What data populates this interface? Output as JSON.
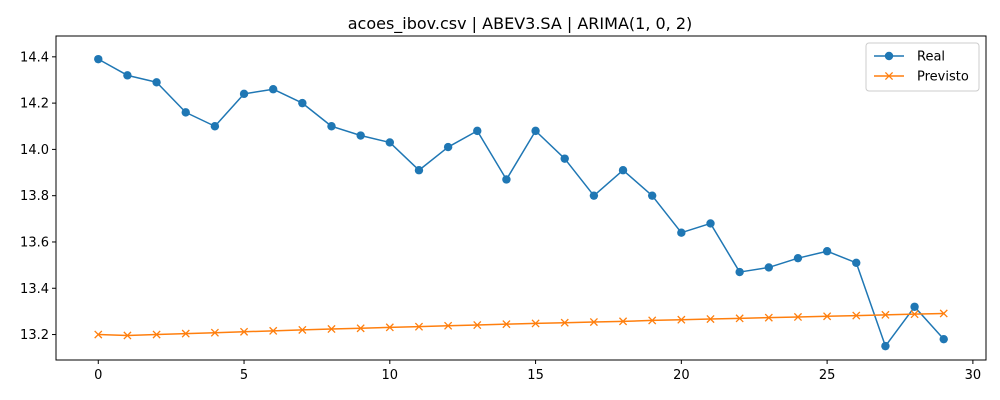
{
  "chart_data": {
    "type": "line",
    "title": "acoes_ibov.csv | ABEV3.SA | ARIMA(1, 0, 2)",
    "xlabel": "",
    "ylabel": "",
    "xlim": [
      -1.45,
      30.45
    ],
    "ylim": [
      13.09,
      14.49
    ],
    "x_ticks": [
      0,
      5,
      10,
      15,
      20,
      25,
      30
    ],
    "x_tick_labels": [
      "0",
      "5",
      "10",
      "15",
      "20",
      "25",
      "30"
    ],
    "y_ticks": [
      13.2,
      13.4,
      13.6,
      13.8,
      14.0,
      14.2,
      14.4
    ],
    "y_tick_labels": [
      "13.2",
      "13.4",
      "13.6",
      "13.8",
      "14.0",
      "14.2",
      "14.4"
    ],
    "grid": false,
    "legend_position": "top-right",
    "x": [
      0,
      1,
      2,
      3,
      4,
      5,
      6,
      7,
      8,
      9,
      10,
      11,
      12,
      13,
      14,
      15,
      16,
      17,
      18,
      19,
      20,
      21,
      22,
      23,
      24,
      25,
      26,
      27,
      28,
      29
    ],
    "series": [
      {
        "name": "Real",
        "color": "#1f77b4",
        "marker": "circle",
        "values": [
          14.39,
          14.32,
          14.29,
          14.16,
          14.1,
          14.24,
          14.26,
          14.2,
          14.1,
          14.06,
          14.03,
          13.91,
          14.01,
          14.08,
          13.87,
          14.08,
          13.96,
          13.8,
          13.91,
          13.8,
          13.64,
          13.68,
          13.47,
          13.49,
          13.53,
          13.56,
          13.51,
          13.15,
          13.32,
          13.18
        ]
      },
      {
        "name": "Previsto",
        "color": "#ff7f0e",
        "marker": "x",
        "values": [
          13.2,
          13.196,
          13.2,
          13.204,
          13.208,
          13.212,
          13.216,
          13.22,
          13.224,
          13.227,
          13.231,
          13.234,
          13.238,
          13.241,
          13.245,
          13.248,
          13.251,
          13.254,
          13.257,
          13.261,
          13.264,
          13.267,
          13.27,
          13.273,
          13.276,
          13.279,
          13.282,
          13.285,
          13.288,
          13.291
        ]
      }
    ]
  }
}
